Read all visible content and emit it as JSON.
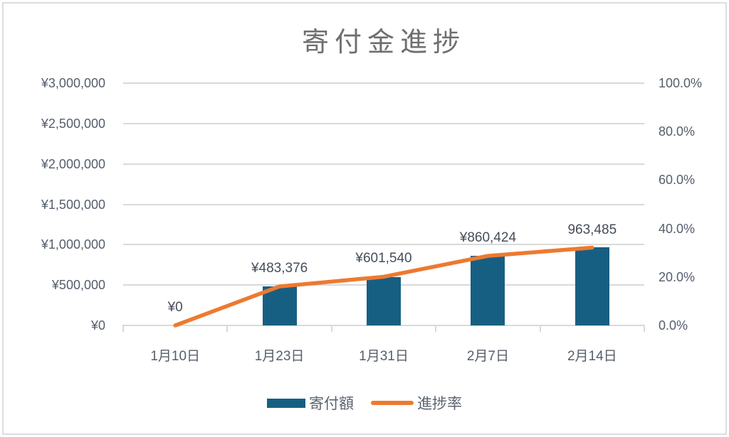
{
  "chart": {
    "title": "寄付金進捗",
    "colors": {
      "bar": "#175F82",
      "line": "#ED7A30",
      "grid": "#D9D9D9",
      "axis_text": "#555E6B",
      "data_label_text": "#454D5A",
      "title_text": "#6F6F6F",
      "border": "#DDDDDD"
    },
    "legend": [
      {
        "label": "寄付額",
        "swatch": "bar"
      },
      {
        "label": "進捗率",
        "swatch": "line"
      }
    ]
  },
  "chart_data": {
    "type": "bar",
    "combo": "bar + line (dual axis)",
    "title": "寄付金進捗",
    "categories": [
      "1月10日",
      "1月23日",
      "1月31日",
      "2月7日",
      "2月14日"
    ],
    "series": [
      {
        "name": "寄付額",
        "type": "bar",
        "axis": "left",
        "values": [
          0,
          483376,
          601540,
          860424,
          963485
        ],
        "data_labels": [
          "¥0",
          "¥483,376",
          "¥601,540",
          "¥860,424",
          "963,485"
        ]
      },
      {
        "name": "進捗率",
        "type": "line",
        "axis": "right",
        "values_pct": [
          0.0,
          16.1,
          20.1,
          28.7,
          32.1
        ]
      }
    ],
    "left_axis": {
      "min": 0,
      "max": 3000000,
      "tick_interval": 500000,
      "tick_labels": [
        "¥0",
        "¥500,000",
        "¥1,000,000",
        "¥1,500,000",
        "¥2,000,000",
        "¥2,500,000",
        "¥3,000,000"
      ]
    },
    "right_axis": {
      "min": 0,
      "max": 100,
      "tick_interval": 20,
      "tick_labels": [
        "0.0%",
        "20.0%",
        "40.0%",
        "60.0%",
        "80.0%",
        "100.0%"
      ]
    },
    "grid": true,
    "legend_position": "bottom"
  }
}
